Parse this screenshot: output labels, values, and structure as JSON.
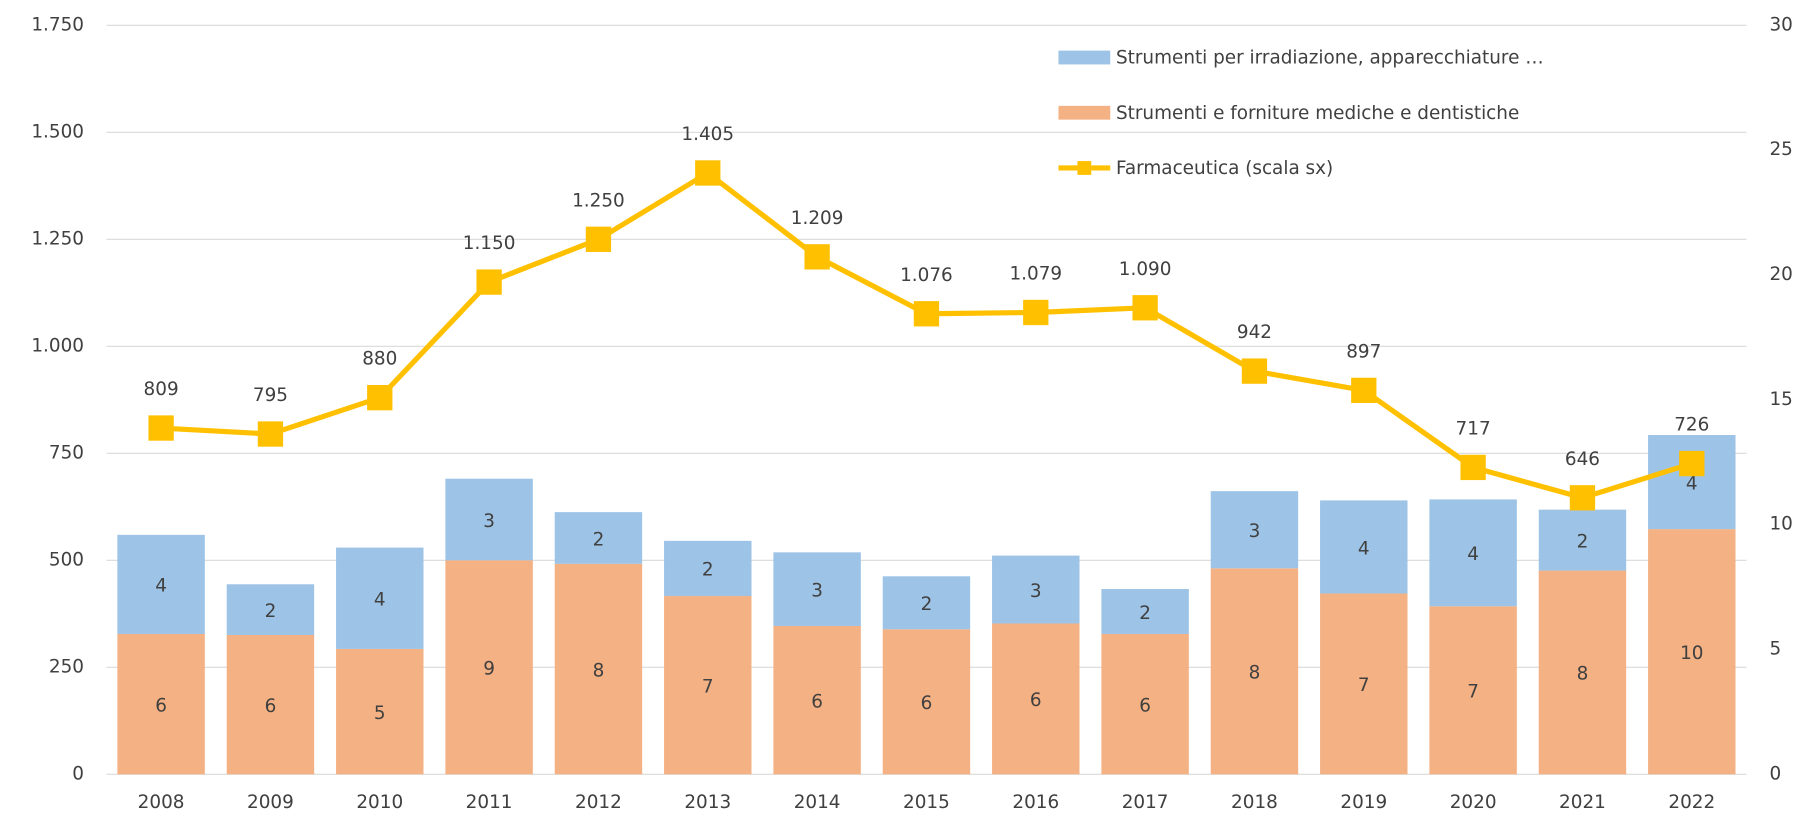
{
  "chart_data": {
    "type": "combo",
    "categories": [
      "2008",
      "2009",
      "2010",
      "2011",
      "2012",
      "2013",
      "2014",
      "2015",
      "2016",
      "2017",
      "2018",
      "2019",
      "2020",
      "2021",
      "2022"
    ],
    "series": [
      {
        "name": "Strumenti e forniture mediche e dentistiche",
        "type": "bar",
        "axis": "y2",
        "color": "#f4b183",
        "values": [
          5.62,
          5.58,
          5.02,
          8.57,
          8.43,
          7.14,
          5.94,
          5.81,
          6.04,
          5.62,
          8.25,
          7.24,
          6.73,
          8.16,
          9.82
        ]
      },
      {
        "name": "Strumenti per irradiazione, apparecchiature …",
        "type": "bar",
        "axis": "y2",
        "color": "#9dc3e6",
        "values": [
          3.97,
          2.03,
          4.06,
          3.27,
          2.07,
          2.21,
          2.95,
          2.12,
          2.72,
          1.8,
          3.09,
          3.73,
          4.28,
          2.44,
          3.77
        ]
      },
      {
        "name": "Farmaceutica (scala sx)",
        "type": "line",
        "axis": "y",
        "color": "#ffc000",
        "values": [
          809,
          795,
          880,
          1150,
          1250,
          1405,
          1209,
          1076,
          1079,
          1090,
          942,
          897,
          717,
          646,
          726
        ],
        "value_labels": [
          "809",
          "795",
          "880",
          "1.150",
          "1.250",
          "1.405",
          "1.209",
          "1.076",
          "1.079",
          "1.090",
          "942",
          "897",
          "717",
          "646",
          "726"
        ]
      }
    ],
    "bar_value_labels": [
      [
        "6",
        "6",
        "5",
        "9",
        "8",
        "7",
        "6",
        "6",
        "6",
        "6",
        "8",
        "7",
        "7",
        "8",
        "10"
      ],
      [
        "4",
        "2",
        "4",
        "3",
        "2",
        "2",
        "3",
        "2",
        "3",
        "2",
        "3",
        "4",
        "4",
        "2",
        "4"
      ]
    ],
    "ylim": [
      0,
      1750
    ],
    "yticks": [
      0,
      250,
      500,
      750,
      {
        "value": 1000,
        "label": "1.000"
      },
      {
        "value": 1250,
        "label": "1.250"
      },
      {
        "value": 1500,
        "label": "1.500"
      },
      {
        "value": 1750,
        "label": "1.750"
      }
    ],
    "y2lim": [
      0,
      30
    ],
    "y2ticks": [
      0,
      5,
      10,
      15,
      20,
      25,
      30
    ],
    "grid": true,
    "legend": "top-right"
  }
}
